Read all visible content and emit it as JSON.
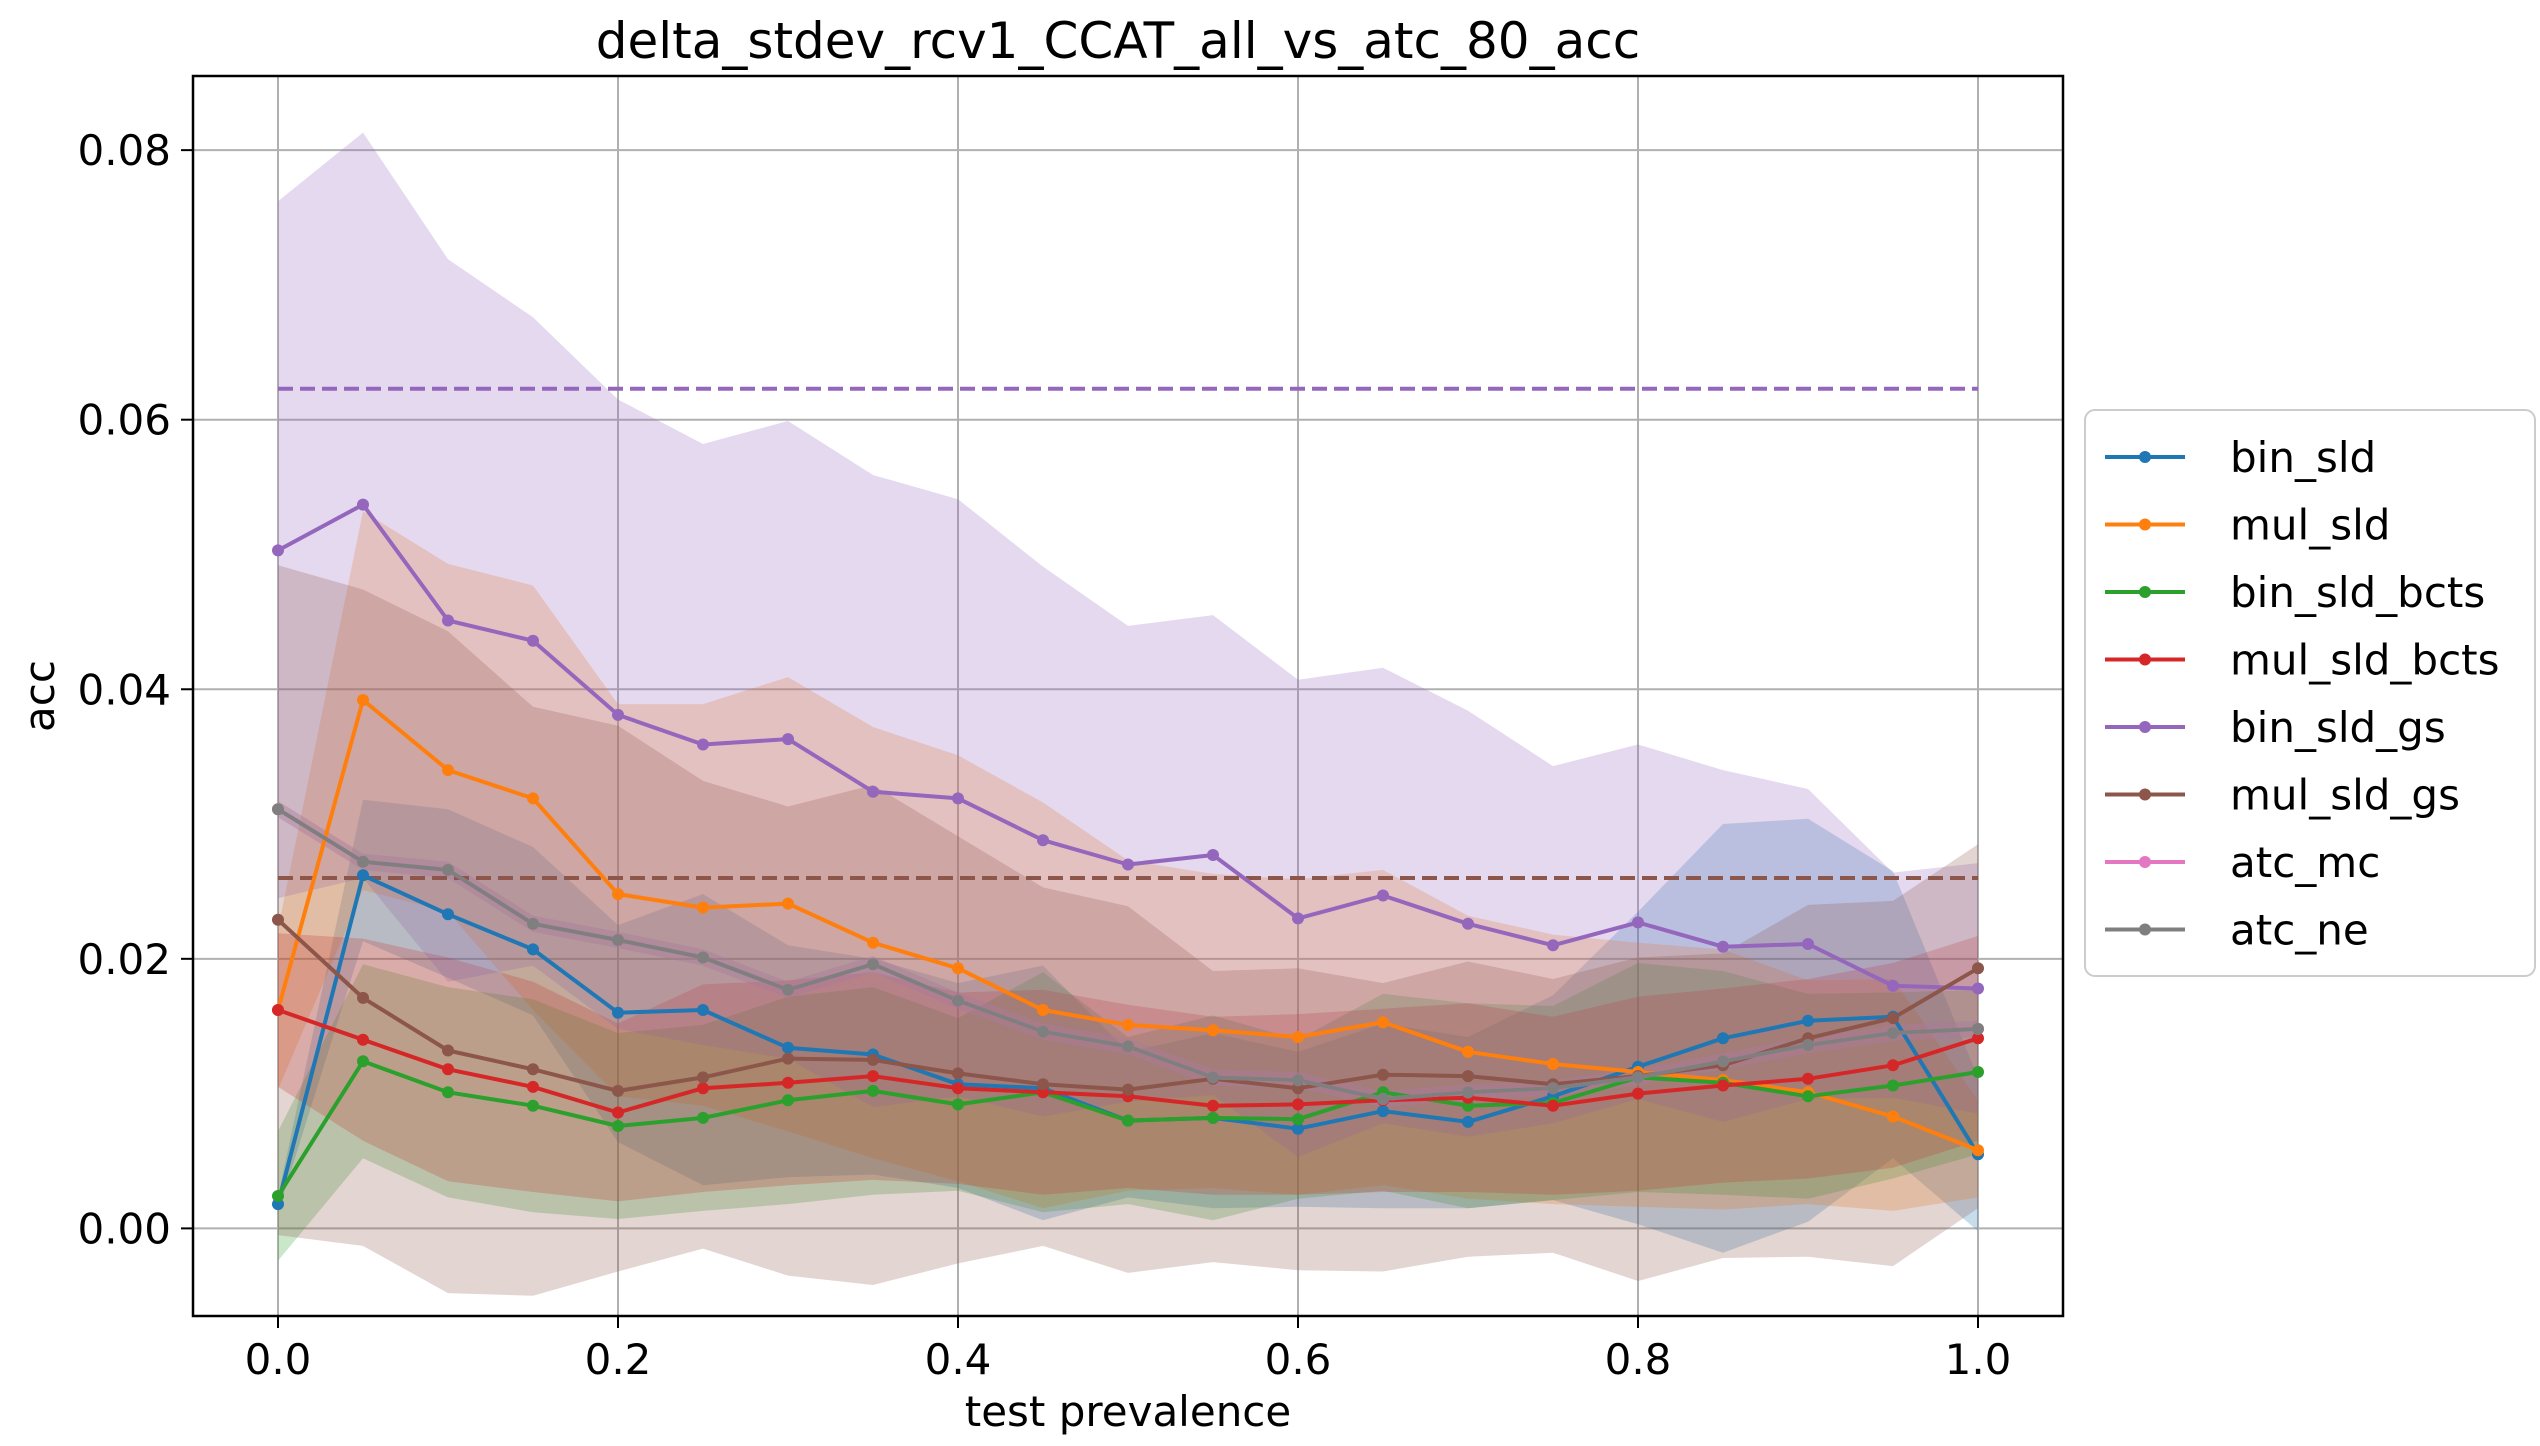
{
  "chart_data": {
    "type": "line",
    "title": "delta_stdev_rcv1_CCAT_all_vs_atc_80_acc",
    "xlabel": "test prevalence",
    "ylabel": "acc",
    "xlim": [
      -0.05,
      1.05
    ],
    "ylim": [
      -0.0065,
      0.0855
    ],
    "xticks": [
      0.0,
      0.2,
      0.4,
      0.6,
      0.8,
      1.0
    ],
    "xtick_labels": [
      "0.0",
      "0.2",
      "0.4",
      "0.6",
      "0.8",
      "1.0"
    ],
    "yticks": [
      0.0,
      0.02,
      0.04,
      0.06,
      0.08
    ],
    "ytick_labels": [
      "0.00",
      "0.02",
      "0.04",
      "0.06",
      "0.08"
    ],
    "grid": true,
    "legend_position": "right, outside plot",
    "x": [
      0.0,
      0.05,
      0.1,
      0.15,
      0.2,
      0.25,
      0.3,
      0.35,
      0.4,
      0.45,
      0.5,
      0.55,
      0.6,
      0.65,
      0.7,
      0.75,
      0.8,
      0.85,
      0.9,
      0.95,
      1.0
    ],
    "series": [
      {
        "name": "bin_sld",
        "color": "#1f77b4",
        "values": [
          0.0018,
          0.0262,
          0.0233,
          0.0207,
          0.016,
          0.0162,
          0.0134,
          0.0129,
          0.0107,
          0.0104,
          0.008,
          0.0082,
          0.0074,
          0.0087,
          0.0079,
          0.0098,
          0.012,
          0.0141,
          0.0154,
          0.0157,
          0.0055
        ],
        "lower": [
          0.0012,
          0.0213,
          0.0186,
          0.0158,
          0.0064,
          0.0032,
          0.0038,
          0.004,
          0.003,
          0.0006,
          0.0023,
          0.0015,
          0.0016,
          0.0015,
          0.0015,
          0.0021,
          0.0003,
          -0.0018,
          0.0005,
          0.0052,
          -0.0002
        ],
        "upper": [
          0.0024,
          0.0318,
          0.0311,
          0.0283,
          0.0225,
          0.0248,
          0.021,
          0.02,
          0.0182,
          0.0195,
          0.0131,
          0.0145,
          0.0131,
          0.0152,
          0.0142,
          0.0173,
          0.0235,
          0.03,
          0.0304,
          0.0265,
          0.0112
        ]
      },
      {
        "name": "mul_sld",
        "color": "#ff7f0e",
        "values": [
          0.0162,
          0.0392,
          0.034,
          0.0319,
          0.0248,
          0.0238,
          0.0241,
          0.0212,
          0.0193,
          0.0162,
          0.0151,
          0.0147,
          0.0142,
          0.0153,
          0.0131,
          0.0122,
          0.0116,
          0.011,
          0.0101,
          0.0083,
          0.0058
        ],
        "lower": [
          0.0103,
          0.0251,
          0.0235,
          0.0162,
          0.0098,
          0.0091,
          0.0072,
          0.0052,
          0.0035,
          0.0015,
          0.0028,
          0.003,
          0.0025,
          0.0032,
          0.0022,
          0.0018,
          0.0016,
          0.0014,
          0.0018,
          0.0013,
          0.0023
        ],
        "upper": [
          0.0222,
          0.0532,
          0.0493,
          0.0477,
          0.0389,
          0.0389,
          0.0409,
          0.0372,
          0.0351,
          0.0316,
          0.0273,
          0.0263,
          0.0259,
          0.0266,
          0.0232,
          0.0218,
          0.0212,
          0.0207,
          0.0184,
          0.0185,
          0.0095
        ]
      },
      {
        "name": "bin_sld_bcts",
        "color": "#2ca02c",
        "values": [
          0.0024,
          0.0124,
          0.0101,
          0.0091,
          0.0076,
          0.0082,
          0.0095,
          0.0102,
          0.0092,
          0.0101,
          0.008,
          0.0082,
          0.0081,
          0.0101,
          0.0091,
          0.0093,
          0.0112,
          0.0108,
          0.0098,
          0.0106,
          0.0116
        ],
        "lower": [
          -0.0024,
          0.0052,
          0.0023,
          0.0012,
          0.0007,
          0.0013,
          0.0018,
          0.0025,
          0.0028,
          0.0012,
          0.0018,
          0.0006,
          0.0022,
          0.0028,
          0.0015,
          0.0021,
          0.0027,
          0.0025,
          0.0022,
          0.0037,
          0.0055
        ],
        "upper": [
          0.0072,
          0.0196,
          0.0179,
          0.017,
          0.0145,
          0.0151,
          0.0172,
          0.0179,
          0.0156,
          0.019,
          0.0142,
          0.0158,
          0.014,
          0.0174,
          0.0167,
          0.0165,
          0.0197,
          0.0191,
          0.0174,
          0.0175,
          0.0177
        ]
      },
      {
        "name": "mul_sld_bcts",
        "color": "#d62728",
        "values": [
          0.0162,
          0.014,
          0.0118,
          0.0105,
          0.0086,
          0.0104,
          0.0108,
          0.0113,
          0.0104,
          0.0101,
          0.0098,
          0.0091,
          0.0092,
          0.0095,
          0.0097,
          0.0091,
          0.01,
          0.0106,
          0.0111,
          0.0121,
          0.0141
        ],
        "lower": [
          0.0105,
          0.0065,
          0.0035,
          0.0027,
          0.002,
          0.0027,
          0.0032,
          0.0036,
          0.0033,
          0.0025,
          0.003,
          0.0025,
          0.0025,
          0.0027,
          0.0027,
          0.0025,
          0.0028,
          0.0034,
          0.0037,
          0.0045,
          0.0065
        ],
        "upper": [
          0.0219,
          0.0215,
          0.0201,
          0.0183,
          0.0152,
          0.0181,
          0.0184,
          0.019,
          0.0175,
          0.0177,
          0.0166,
          0.0157,
          0.0159,
          0.0163,
          0.0167,
          0.0157,
          0.0172,
          0.0178,
          0.0185,
          0.0197,
          0.0217
        ]
      },
      {
        "name": "bin_sld_gs",
        "color": "#9467bd",
        "values": [
          0.0503,
          0.0537,
          0.0451,
          0.0436,
          0.0381,
          0.0359,
          0.0363,
          0.0324,
          0.0319,
          0.0288,
          0.027,
          0.0277,
          0.023,
          0.0247,
          0.0226,
          0.021,
          0.0227,
          0.0209,
          0.0211,
          0.018,
          0.0178
        ],
        "lower": [
          0.0245,
          0.026,
          0.0183,
          0.0195,
          0.0148,
          0.0136,
          0.0126,
          0.009,
          0.0098,
          0.0083,
          0.0094,
          0.0099,
          0.0053,
          0.0078,
          0.0068,
          0.0078,
          0.0096,
          0.0079,
          0.0096,
          0.0097,
          0.0085
        ],
        "upper": [
          0.0762,
          0.0813,
          0.0719,
          0.0676,
          0.0615,
          0.0582,
          0.0599,
          0.0559,
          0.0541,
          0.0491,
          0.0447,
          0.0455,
          0.0407,
          0.0416,
          0.0384,
          0.0343,
          0.0359,
          0.034,
          0.0326,
          0.0264,
          0.0271
        ]
      },
      {
        "name": "mul_sld_gs",
        "color": "#8c564b",
        "values": [
          0.0229,
          0.0171,
          0.0132,
          0.0118,
          0.0102,
          0.0112,
          0.0126,
          0.0125,
          0.0115,
          0.0107,
          0.0103,
          0.0111,
          0.0104,
          0.0114,
          0.0113,
          0.0107,
          0.0113,
          0.0121,
          0.0141,
          0.0156,
          0.0193
        ],
        "lower": [
          -0.0005,
          -0.0013,
          -0.0048,
          -0.005,
          -0.0032,
          -0.0015,
          -0.0035,
          -0.0042,
          -0.0026,
          -0.0013,
          -0.0033,
          -0.0025,
          -0.0031,
          -0.0032,
          -0.0021,
          -0.0018,
          -0.0039,
          -0.0022,
          -0.0021,
          -0.0028,
          0.0015
        ],
        "upper": [
          0.0492,
          0.0474,
          0.0443,
          0.0387,
          0.0373,
          0.0332,
          0.0313,
          0.0329,
          0.0291,
          0.0253,
          0.0239,
          0.0191,
          0.0193,
          0.0182,
          0.0198,
          0.0185,
          0.0201,
          0.0204,
          0.024,
          0.0243,
          0.0285
        ]
      },
      {
        "name": "atc_mc",
        "color": "#e377c2",
        "values": [
          0.0311,
          0.0272,
          0.0266,
          0.0226,
          0.0214,
          0.0201,
          0.0177,
          0.0196,
          0.0169,
          0.0146,
          0.0135,
          0.0112,
          0.011,
          0.0096,
          0.0101,
          0.0104,
          0.0112,
          0.0124,
          0.0136,
          0.0145,
          0.0148
        ],
        "lower": [
          0.0305,
          0.0266,
          0.026,
          0.022,
          0.0208,
          0.0195,
          0.0171,
          0.019,
          0.0163,
          0.014,
          0.0129,
          0.0106,
          0.0104,
          0.009,
          0.0095,
          0.0098,
          0.0106,
          0.0118,
          0.013,
          0.0139,
          0.0142
        ],
        "upper": [
          0.0317,
          0.0278,
          0.0272,
          0.0232,
          0.022,
          0.0207,
          0.0183,
          0.0202,
          0.0175,
          0.0152,
          0.0141,
          0.0118,
          0.0116,
          0.0102,
          0.0107,
          0.011,
          0.0118,
          0.013,
          0.0142,
          0.0151,
          0.0154
        ]
      },
      {
        "name": "atc_ne",
        "color": "#7f7f7f",
        "values": [
          0.0311,
          0.0272,
          0.0266,
          0.0226,
          0.0214,
          0.0201,
          0.0177,
          0.0196,
          0.0169,
          0.0146,
          0.0135,
          0.0112,
          0.011,
          0.0096,
          0.0101,
          0.0104,
          0.0112,
          0.0124,
          0.0136,
          0.0145,
          0.0148
        ],
        "lower": [
          0.0305,
          0.0266,
          0.026,
          0.022,
          0.0208,
          0.0195,
          0.0171,
          0.019,
          0.0163,
          0.014,
          0.0129,
          0.0106,
          0.0104,
          0.009,
          0.0095,
          0.0098,
          0.0106,
          0.0118,
          0.013,
          0.0139,
          0.0142
        ],
        "upper": [
          0.0317,
          0.0278,
          0.0272,
          0.0232,
          0.022,
          0.0207,
          0.0183,
          0.0202,
          0.0175,
          0.0152,
          0.0141,
          0.0118,
          0.0116,
          0.0102,
          0.0107,
          0.011,
          0.0118,
          0.013,
          0.0142,
          0.0151,
          0.0154
        ]
      }
    ],
    "reference_lines": [
      {
        "series": "bin_sld_gs",
        "color": "#9467bd",
        "y": 0.0623,
        "x_range": [
          0.0,
          1.0
        ],
        "style": "dashed"
      },
      {
        "series": "mul_sld_gs",
        "color": "#8c564b",
        "y": 0.026,
        "x_range": [
          0.0,
          1.0
        ],
        "style": "dashed"
      }
    ]
  }
}
